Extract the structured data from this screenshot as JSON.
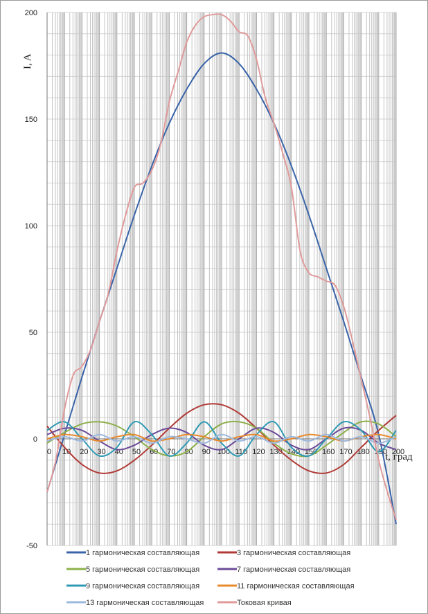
{
  "chart_data": {
    "type": "line",
    "title": "",
    "ylabel": "I, A",
    "xlabel": "t, град",
    "xlim": [
      0,
      200
    ],
    "ylim": [
      -50,
      200
    ],
    "x_ticks": [
      "0",
      "10",
      "20",
      "30",
      "40",
      "50",
      "60",
      "70",
      "80",
      "90",
      "100",
      "110",
      "120",
      "130",
      "140",
      "150",
      "160",
      "170",
      "180",
      "190",
      "200"
    ],
    "y_ticks": [
      "200",
      "150",
      "100",
      "50",
      "0",
      "-50"
    ],
    "grid": "vertical minor + horizontal major",
    "legend_position": "bottom",
    "series": [
      {
        "name": "1  гармоническая составляющая",
        "color": "#3a64a8",
        "width": 2,
        "x": [
          0,
          10,
          20,
          30,
          40,
          50,
          60,
          70,
          80,
          90,
          100,
          110,
          120,
          130,
          140,
          150,
          160,
          170,
          180,
          190,
          200
        ],
        "y": [
          -25,
          2,
          29,
          55,
          80,
          105,
          128,
          148,
          164,
          176,
          181,
          176,
          164,
          148,
          128,
          105,
          80,
          55,
          29,
          2,
          -40
        ]
      },
      {
        "name": "3 гармоническая составляющая",
        "color": "#b03a36",
        "width": 2,
        "x": [
          0,
          10,
          20,
          30,
          40,
          50,
          60,
          70,
          80,
          90,
          100,
          110,
          120,
          130,
          140,
          150,
          160,
          170,
          180,
          190,
          200
        ],
        "y": [
          6,
          -4,
          -12,
          -16,
          -15,
          -10,
          -3,
          5,
          12,
          16,
          16,
          12,
          5,
          -3,
          -10,
          -15,
          -16,
          -12,
          -4,
          4,
          11
        ]
      },
      {
        "name": "5 гармоническая составляющая",
        "color": "#8db04a",
        "width": 2,
        "x": [
          0,
          10,
          20,
          30,
          40,
          50,
          60,
          70,
          80,
          90,
          100,
          110,
          120,
          130,
          140,
          150,
          160,
          170,
          180,
          190,
          200
        ],
        "y": [
          -2,
          3,
          7,
          8,
          6,
          1,
          -5,
          -8,
          -6,
          1,
          7,
          8,
          5,
          -2,
          -7,
          -8,
          -3,
          3,
          8,
          7,
          1
        ]
      },
      {
        "name": "7 гармоническая составляющая",
        "color": "#6b4a98",
        "width": 2,
        "x": [
          0,
          10,
          20,
          30,
          40,
          50,
          60,
          70,
          80,
          90,
          100,
          110,
          120,
          130,
          140,
          150,
          160,
          170,
          180,
          190,
          200
        ],
        "y": [
          2,
          5,
          4,
          -1,
          -5,
          -3,
          2,
          5,
          3,
          -3,
          -5,
          0,
          5,
          3,
          -3,
          -5,
          0,
          5,
          4,
          -2,
          -5
        ]
      },
      {
        "name": "9 гармоническая составляющая",
        "color": "#2f9ab4",
        "width": 2,
        "x": [
          0,
          10,
          20,
          30,
          40,
          50,
          60,
          70,
          80,
          90,
          100,
          110,
          120,
          130,
          140,
          150,
          160,
          170,
          180,
          190,
          200
        ],
        "y": [
          4,
          8,
          0,
          -8,
          -4,
          8,
          2,
          -8,
          -2,
          8,
          -2,
          -8,
          2,
          8,
          -4,
          -8,
          0,
          8,
          4,
          -6,
          4
        ]
      },
      {
        "name": "11 гармоническая составляющая",
        "color": "#e8892c",
        "width": 2,
        "x": [
          0,
          10,
          20,
          30,
          40,
          50,
          60,
          70,
          80,
          90,
          100,
          110,
          120,
          130,
          140,
          150,
          160,
          170,
          180,
          190,
          200
        ],
        "y": [
          0,
          2,
          1,
          -1,
          1,
          2,
          -1,
          0,
          2,
          1,
          -1,
          1,
          2,
          -1,
          0,
          2,
          1,
          -1,
          1,
          2,
          0
        ]
      },
      {
        "name": "13 гармоническая составляющая",
        "color": "#9cb8dd",
        "width": 2,
        "x": [
          0,
          10,
          20,
          30,
          40,
          50,
          60,
          70,
          80,
          90,
          100,
          110,
          120,
          130,
          140,
          150,
          160,
          170,
          180,
          190,
          200
        ],
        "y": [
          -1,
          1,
          -1,
          2,
          -1,
          1,
          -2,
          1,
          0,
          -2,
          2,
          -1,
          1,
          -2,
          1,
          -1,
          2,
          -1,
          1,
          -2,
          1
        ]
      },
      {
        "name": "Токовая кривая",
        "color": "#e09a9a",
        "width": 2,
        "x": [
          0,
          5,
          10,
          15,
          20,
          25,
          30,
          35,
          40,
          45,
          50,
          55,
          60,
          65,
          70,
          75,
          80,
          85,
          90,
          95,
          100,
          105,
          110,
          115,
          120,
          125,
          130,
          135,
          140,
          145,
          150,
          155,
          160,
          165,
          170,
          175,
          180,
          185,
          190,
          195,
          200
        ],
        "y": [
          -25,
          -10,
          14,
          30,
          34,
          42,
          55,
          68,
          88,
          105,
          118,
          120,
          126,
          138,
          158,
          172,
          186,
          194,
          198,
          199,
          199,
          196,
          191,
          189,
          178,
          160,
          148,
          134,
          118,
          88,
          78,
          76,
          74,
          72,
          62,
          46,
          28,
          10,
          -10,
          -25,
          -38
        ]
      }
    ]
  }
}
